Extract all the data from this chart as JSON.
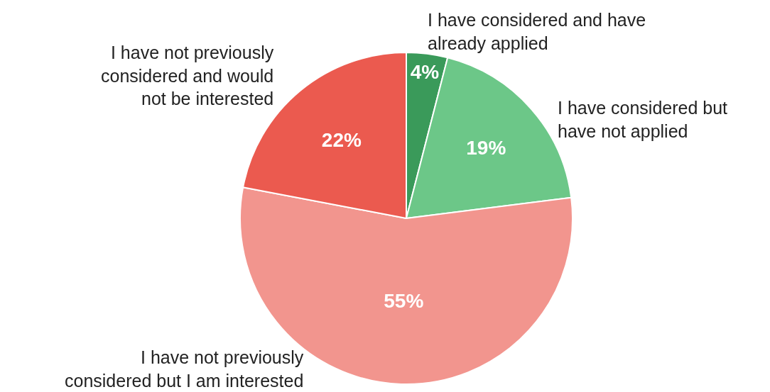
{
  "chart_data": {
    "type": "pie",
    "categories": [
      "I have considered and have already applied",
      "I have considered but have not applied",
      "I have not previously considered but I am interested",
      "I have not previously considered and would not be interested"
    ],
    "values": [
      4,
      19,
      55,
      22
    ],
    "colors": [
      "#3a9a5a",
      "#6cc788",
      "#f2958e",
      "#eb5a4f"
    ],
    "value_labels": [
      "4%",
      "19%",
      "55%",
      "22%"
    ]
  }
}
